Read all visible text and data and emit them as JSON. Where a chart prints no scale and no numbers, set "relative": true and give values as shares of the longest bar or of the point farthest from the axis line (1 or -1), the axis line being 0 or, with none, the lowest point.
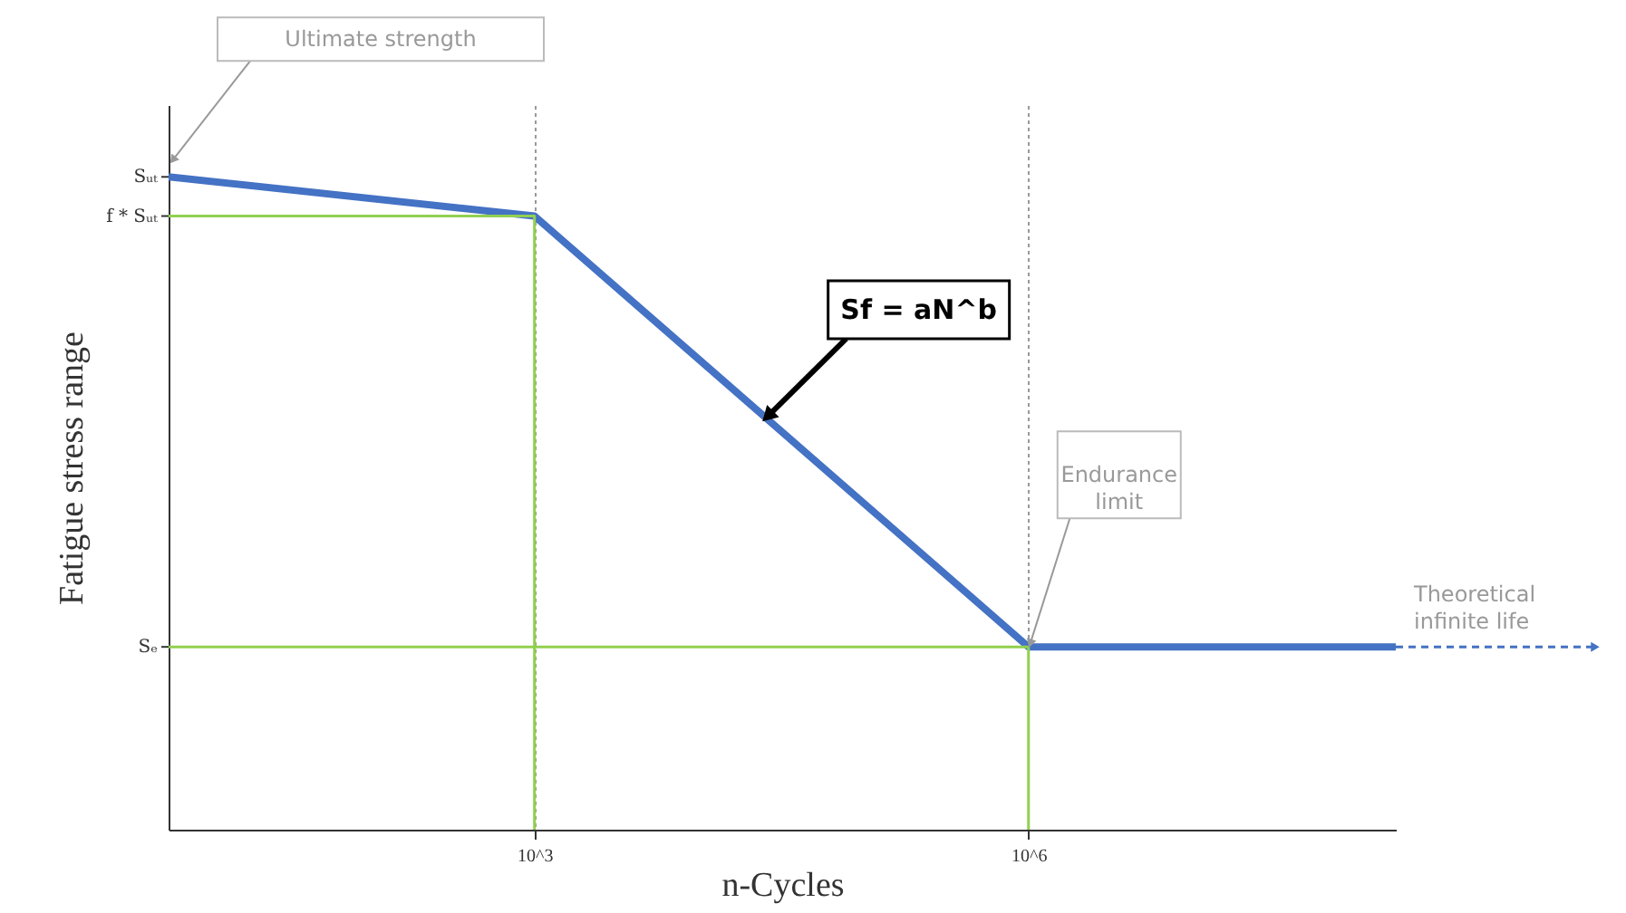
{
  "chart_data": {
    "type": "line",
    "xlabel": "n-Cycles",
    "ylabel": "Fatigue stress range",
    "log": "x",
    "xlim": [
      6,
      170000000
    ],
    "relative": true,
    "xticks": [
      {
        "value": 1000,
        "label": "10^3"
      },
      {
        "value": 1000000,
        "label": "10^6"
      }
    ],
    "grid": true,
    "series": [
      {
        "color": "#4472c4",
        "x": [
          6,
          1000,
          1000000,
          170000000
        ],
        "values": [
          1,
          0.94,
          0.28,
          0.28
        ]
      },
      {
        "color": "#92d050",
        "x": [
          6,
          1000,
          1000
        ],
        "values": [
          0.94,
          0.94,
          0
        ]
      },
      {
        "color": "#92d050",
        "x": [
          6,
          1000000
        ],
        "values": [
          0.28,
          0.28
        ]
      },
      {
        "color": "#92d050",
        "x": [
          1000000,
          1000000
        ],
        "values": [
          0,
          0.28
        ]
      }
    ],
    "annotations": [
      "Ultimate strength",
      {
        "text": "Sf = aN^b",
        "x": 25000,
        "y": 0.63
      },
      {
        "text": "Endurance limit",
        "x": 1000000,
        "y": 0.28
      },
      "Theoretical infinite life",
      {
        "text": "Sᵤₜ",
        "x": 6,
        "y": 1
      },
      {
        "text": "f * Sᵤₜ",
        "x": 6,
        "y": 0.94
      },
      {
        "text": "Sₑ",
        "x": 6,
        "y": 0.28
      }
    ]
  }
}
